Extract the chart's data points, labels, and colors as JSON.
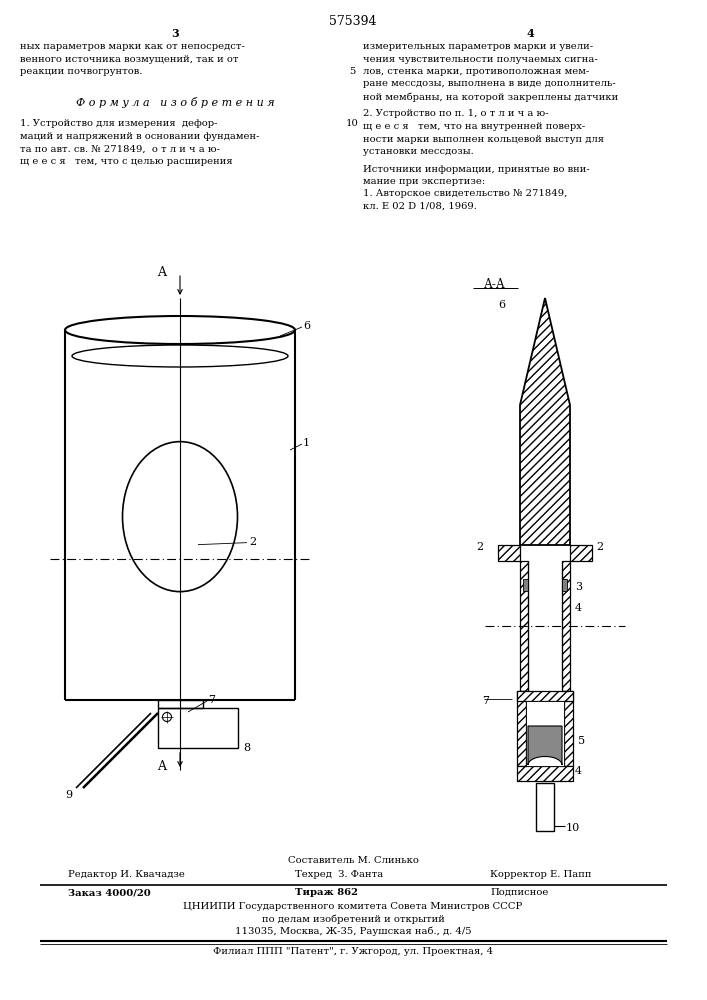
{
  "bg_color": "#ffffff",
  "page_number_center": "575394",
  "page_num_left": "3",
  "page_num_right": "4",
  "text_col1_lines": [
    "ных параметров марки как от непосредст-",
    "венного источника возмущений, так и от",
    "реакции почвогрунтов."
  ],
  "text_col2_lines": [
    "измерительных параметров марки и увели-",
    "чения чувствительности получаемых сигна-",
    "лов, стенка марки, противоположная мем-",
    "ране месcдозы, выполнена в виде дополнитель-",
    "ной мембраны, на которой закреплены датчики"
  ],
  "formula_header": "Ф о р м у л а   и з о б р е т е н и я",
  "claim1_lines": [
    "1. Устройство для измерения  дефор-",
    "маций и напряжений в основании фундамен-",
    "та по авт. св. № 271849,  о т л и ч а ю-",
    "щ е е с я   тем, что с целью расширения"
  ],
  "claim2_lines": [
    "2. Устройство по п. 1, о т л и ч а ю-",
    "щ е е с я   тем, что на внутренней поверх-",
    "ности марки выполнен кольцевой выступ для",
    "установки месcдозы."
  ],
  "source_header": "Источники информации, принятые во вни-",
  "source_lines": [
    "мание при экспертизе:",
    "1. Авторское свидетельство № 271849,",
    "кл. Е 02 D 1/08, 1969."
  ],
  "footer_compiler": "Составитель М. Слинько",
  "footer_editor": "Редактор И. Квачадзе",
  "footer_techred": "Техред  З. Фанта",
  "footer_corrector": "Корректор Е. Папп",
  "footer_order": "Заказ 4000/20",
  "footer_tirazh": "Тираж 862",
  "footer_podpisnoe": "Подписное",
  "footer_org1": "ЦНИИПИ Государственного комитета Совета Министров СССР",
  "footer_org2": "по делам изобретений и открытий",
  "footer_address": "113035, Москва, Ж-35, Раушская наб., д. 4/5",
  "footer_filial": "Филиал ППП \"Патент\", г. Ужгород, ул. Проектная, 4"
}
